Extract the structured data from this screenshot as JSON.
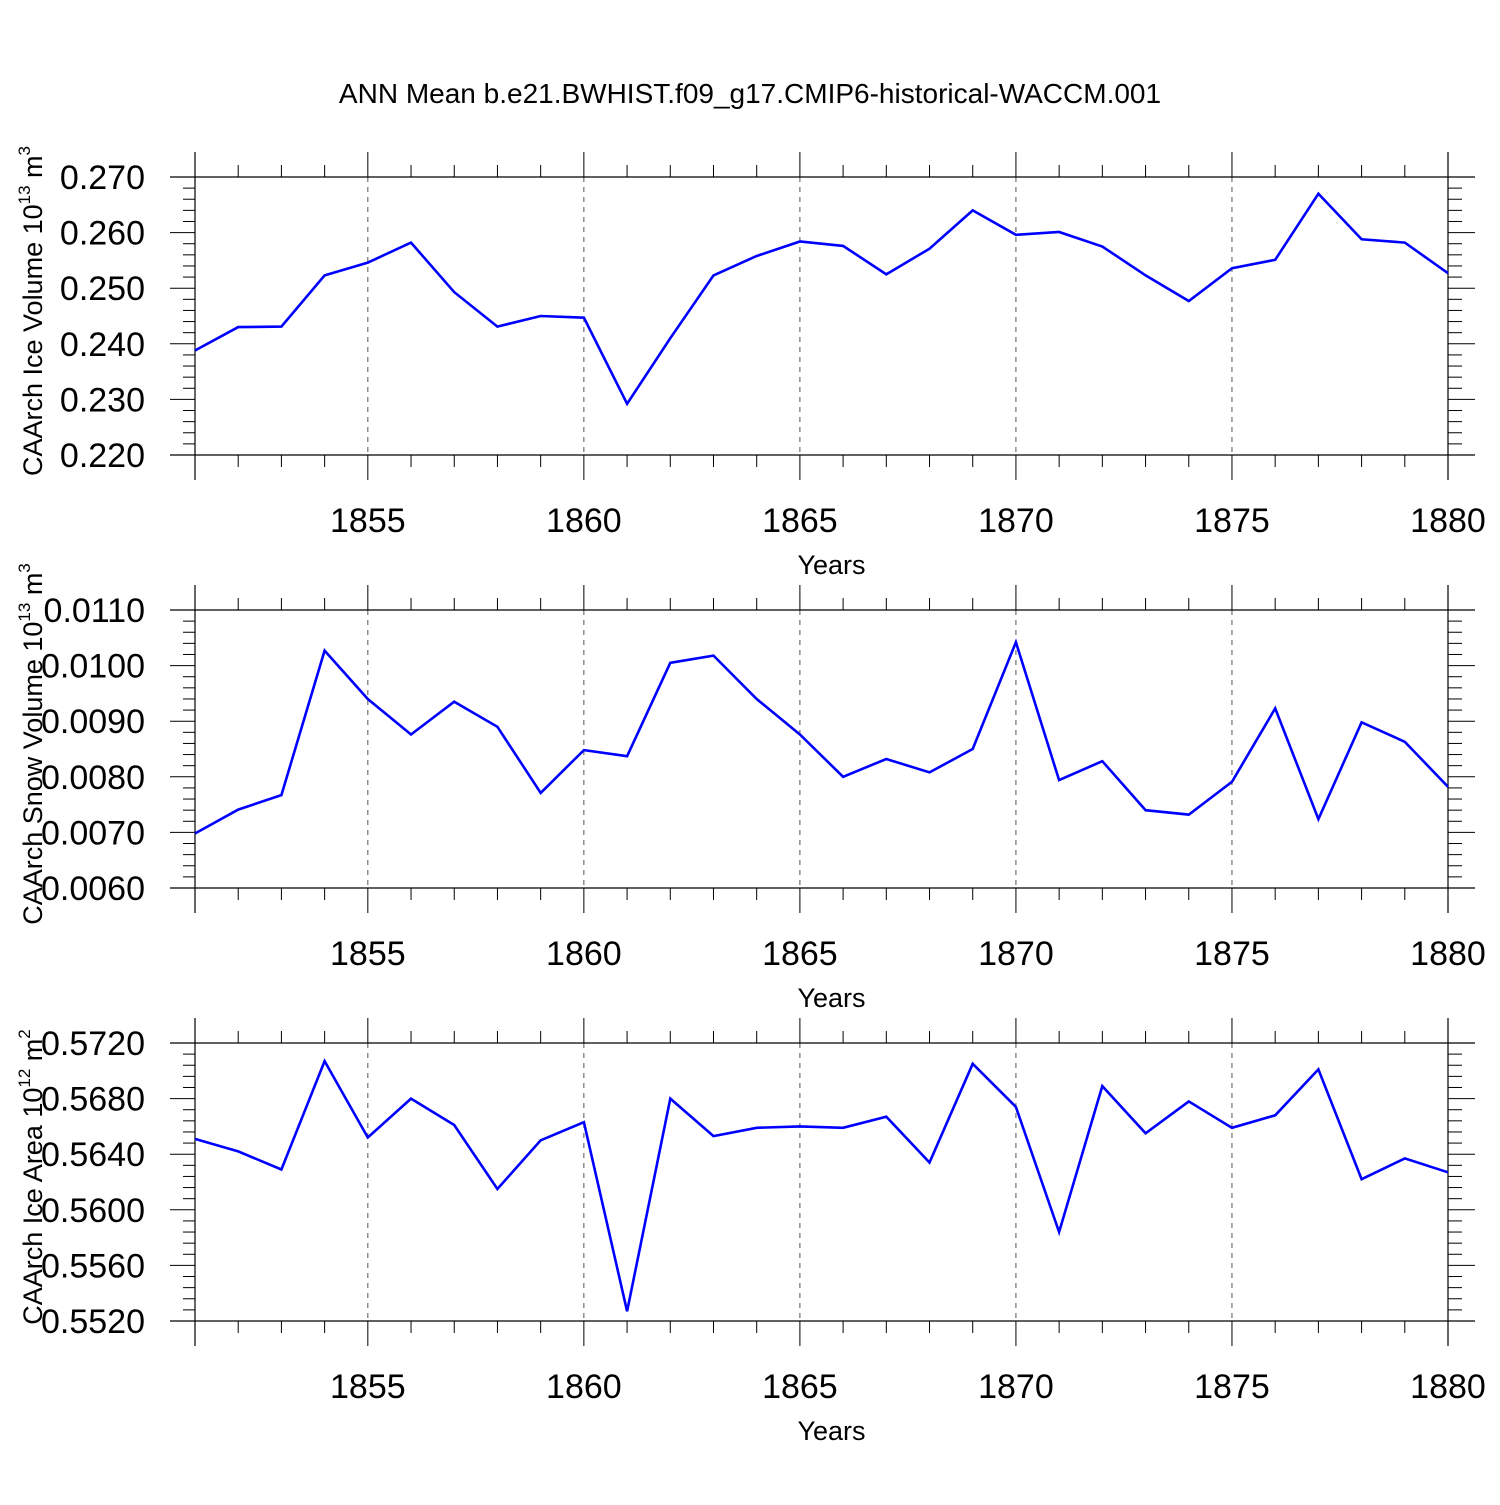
{
  "title": "ANN Mean b.e21.BWHIST.f09_g17.CMIP6-historical-WACCM.001",
  "colors": {
    "line": "#0000ff",
    "axis": "#000000",
    "grid": "#555555"
  },
  "chart_data": [
    {
      "type": "line",
      "xlabel": "Years",
      "ylabel": "CAArch Ice Volume 10",
      "ylabel_exp": "13",
      "ylabel_unit": " m",
      "ylabel_unit_exp": "3",
      "xlim": [
        1851,
        1880
      ],
      "ylim": [
        0.22,
        0.27
      ],
      "xticks": [
        1855,
        1860,
        1865,
        1870,
        1875,
        1880
      ],
      "xtick_labels": [
        "1855",
        "1860",
        "1865",
        "1870",
        "1875",
        "1880"
      ],
      "yticks": [
        0.22,
        0.23,
        0.24,
        0.25,
        0.26,
        0.27
      ],
      "ytick_labels": [
        "0.220",
        "0.230",
        "0.240",
        "0.250",
        "0.260",
        "0.270"
      ],
      "grid": "vertical dashed at major x ticks",
      "x": [
        1851,
        1852,
        1853,
        1854,
        1855,
        1856,
        1857,
        1858,
        1859,
        1860,
        1861,
        1862,
        1863,
        1864,
        1865,
        1866,
        1867,
        1868,
        1869,
        1870,
        1871,
        1872,
        1873,
        1874,
        1875,
        1876,
        1877,
        1878,
        1879,
        1880
      ],
      "values": [
        0.2388,
        0.243,
        0.2431,
        0.2523,
        0.2546,
        0.2582,
        0.2493,
        0.2431,
        0.245,
        0.2447,
        0.2292,
        0.241,
        0.2523,
        0.2558,
        0.2584,
        0.2576,
        0.2525,
        0.2571,
        0.264,
        0.2596,
        0.2601,
        0.2575,
        0.2523,
        0.2477,
        0.2536,
        0.2551,
        0.267,
        0.2588,
        0.2582,
        0.2527
      ]
    },
    {
      "type": "line",
      "xlabel": "Years",
      "ylabel": "CAArch Snow Volume 10",
      "ylabel_exp": "13",
      "ylabel_unit": " m",
      "ylabel_unit_exp": "3",
      "xlim": [
        1851,
        1880
      ],
      "ylim": [
        0.006,
        0.011
      ],
      "xticks": [
        1855,
        1860,
        1865,
        1870,
        1875,
        1880
      ],
      "xtick_labels": [
        "1855",
        "1860",
        "1865",
        "1870",
        "1875",
        "1880"
      ],
      "yticks": [
        0.006,
        0.007,
        0.008,
        0.009,
        0.01,
        0.011
      ],
      "ytick_labels": [
        "0.0060",
        "0.0070",
        "0.0080",
        "0.0090",
        "0.0100",
        "0.0110"
      ],
      "grid": "vertical dashed at major x ticks",
      "x": [
        1851,
        1852,
        1853,
        1854,
        1855,
        1856,
        1857,
        1858,
        1859,
        1860,
        1861,
        1862,
        1863,
        1864,
        1865,
        1866,
        1867,
        1868,
        1869,
        1870,
        1871,
        1872,
        1873,
        1874,
        1875,
        1876,
        1877,
        1878,
        1879,
        1880
      ],
      "values": [
        0.00698,
        0.00741,
        0.00767,
        0.01027,
        0.0094,
        0.00876,
        0.00935,
        0.0089,
        0.00771,
        0.00848,
        0.00837,
        0.01005,
        0.01018,
        0.0094,
        0.00876,
        0.008,
        0.00832,
        0.00808,
        0.0085,
        0.01042,
        0.00794,
        0.00828,
        0.0074,
        0.00732,
        0.00791,
        0.00923,
        0.00724,
        0.00898,
        0.00863,
        0.00782
      ]
    },
    {
      "type": "line",
      "xlabel": "Years",
      "ylabel": "CAArch Ice Area 10",
      "ylabel_exp": "12",
      "ylabel_unit": " m",
      "ylabel_unit_exp": "2",
      "xlim": [
        1851,
        1880
      ],
      "ylim": [
        0.552,
        0.573
      ],
      "xticks": [
        1855,
        1860,
        1865,
        1870,
        1875,
        1880
      ],
      "xtick_labels": [
        "1855",
        "1860",
        "1865",
        "1870",
        "1875",
        "1880"
      ],
      "yticks": [
        0.552,
        0.556,
        0.56,
        0.564,
        0.568,
        0.572
      ],
      "ytick_labels": [
        "0.5520",
        "0.5560",
        "0.5600",
        "0.5640",
        "0.5680",
        "0.5720"
      ],
      "grid": "vertical dashed at major x ticks",
      "x": [
        1851,
        1852,
        1853,
        1854,
        1855,
        1856,
        1857,
        1858,
        1859,
        1860,
        1861,
        1862,
        1863,
        1864,
        1865,
        1866,
        1867,
        1868,
        1869,
        1870,
        1871,
        1872,
        1873,
        1874,
        1875,
        1876,
        1877,
        1878,
        1879,
        1880
      ],
      "values": [
        0.5651,
        0.5642,
        0.5629,
        0.5707,
        0.5652,
        0.568,
        0.5661,
        0.5615,
        0.565,
        0.5663,
        0.5527,
        0.568,
        0.5653,
        0.5659,
        0.566,
        0.5659,
        0.5667,
        0.5634,
        0.5705,
        0.5674,
        0.5584,
        0.5689,
        0.5655,
        0.5678,
        0.5659,
        0.5668,
        0.5701,
        0.5622,
        0.5637,
        0.5627
      ]
    }
  ]
}
